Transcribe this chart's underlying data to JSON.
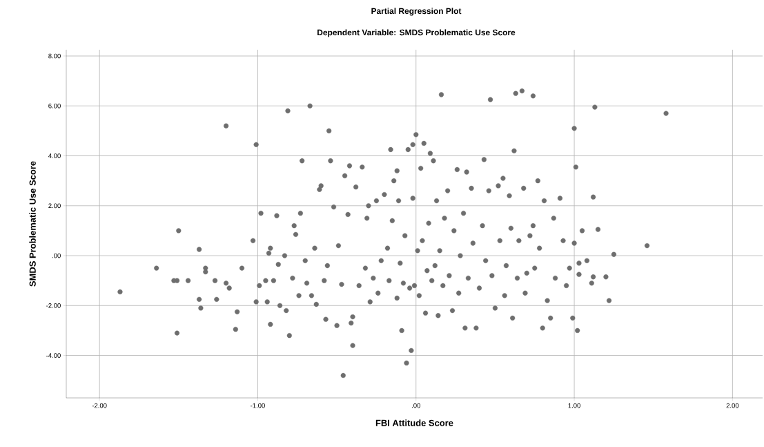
{
  "chart_data": {
    "type": "scatter",
    "title": "Partial Regression Plot",
    "subtitle": "Dependent Variable: SMDS Problematic Use Score",
    "xlabel": "FBI Attitude Score",
    "ylabel": "SMDS Problematic Use Score",
    "xlim": [
      -2.21,
      2.19
    ],
    "ylim": [
      -5.7,
      8.25
    ],
    "xticks": [
      {
        "value": -2,
        "label": "-2.00"
      },
      {
        "value": -1,
        "label": "-1.00"
      },
      {
        "value": 0,
        "label": ".00"
      },
      {
        "value": 1,
        "label": "1.00"
      },
      {
        "value": 2,
        "label": "2.00"
      }
    ],
    "yticks": [
      {
        "value": -4,
        "label": "-4.00"
      },
      {
        "value": -2,
        "label": "-2.00"
      },
      {
        "value": 0,
        "label": ".00"
      },
      {
        "value": 2,
        "label": "2.00"
      },
      {
        "value": 4,
        "label": "4.00"
      },
      {
        "value": 6,
        "label": "6.00"
      },
      {
        "value": 8,
        "label": "8.00"
      }
    ],
    "grid": true,
    "marker": "circle",
    "series": [
      {
        "color": "#6e6e6e",
        "x": [
          -1.87,
          -1.64,
          -1.53,
          -1.51,
          -1.5,
          -1.51,
          -1.44,
          -1.37,
          -1.37,
          -1.36,
          -1.33,
          -1.33,
          -1.27,
          -1.26,
          -1.2,
          -1.2,
          -1.18,
          -1.14,
          -1.13,
          -1.1,
          -1.03,
          -1.01,
          -1.01,
          -0.99,
          -0.98,
          -0.95,
          -0.94,
          -0.93,
          -0.92,
          -0.92,
          -0.9,
          -0.88,
          -0.87,
          -0.86,
          -0.83,
          -0.82,
          -0.81,
          -0.8,
          -0.78,
          -0.77,
          -0.76,
          -0.74,
          -0.73,
          -0.72,
          -0.7,
          -0.69,
          -0.67,
          -0.66,
          -0.64,
          -0.63,
          -0.61,
          -0.6,
          -0.58,
          -0.57,
          -0.56,
          -0.55,
          -0.54,
          -0.52,
          -0.5,
          -0.49,
          -0.47,
          -0.46,
          -0.45,
          -0.43,
          -0.42,
          -0.41,
          -0.4,
          -0.4,
          -0.38,
          -0.36,
          -0.34,
          -0.32,
          -0.31,
          -0.3,
          -0.29,
          -0.27,
          -0.25,
          -0.24,
          -0.22,
          -0.2,
          -0.18,
          -0.17,
          -0.16,
          -0.15,
          -0.14,
          -0.12,
          -0.12,
          -0.11,
          -0.1,
          -0.09,
          -0.08,
          -0.07,
          -0.06,
          -0.05,
          -0.04,
          -0.03,
          -0.02,
          -0.02,
          -0.01,
          0.0,
          0.01,
          0.02,
          0.03,
          0.04,
          0.05,
          0.06,
          0.07,
          0.08,
          0.09,
          0.1,
          0.11,
          0.12,
          0.13,
          0.14,
          0.15,
          0.16,
          0.17,
          0.18,
          0.2,
          0.21,
          0.23,
          0.24,
          0.26,
          0.27,
          0.28,
          0.3,
          0.31,
          0.32,
          0.33,
          0.35,
          0.36,
          0.38,
          0.4,
          0.42,
          0.43,
          0.44,
          0.46,
          0.47,
          0.48,
          0.5,
          0.52,
          0.53,
          0.55,
          0.56,
          0.57,
          0.59,
          0.6,
          0.61,
          0.62,
          0.63,
          0.64,
          0.65,
          0.67,
          0.68,
          0.69,
          0.7,
          0.72,
          0.74,
          0.74,
          0.75,
          0.77,
          0.78,
          0.8,
          0.81,
          0.83,
          0.85,
          0.87,
          0.88,
          0.91,
          0.93,
          0.95,
          0.97,
          0.99,
          1.0,
          1.01,
          1.02,
          1.0,
          1.03,
          1.05,
          1.08,
          1.11,
          1.12,
          1.13,
          1.15,
          1.2,
          1.22,
          1.25,
          1.46,
          1.58,
          1.12,
          1.03
        ],
        "values": [
          -1.45,
          -0.5,
          -1.0,
          -1.0,
          1.0,
          -3.1,
          -1.0,
          0.25,
          -1.75,
          -2.1,
          -0.5,
          -0.65,
          -1.0,
          -1.75,
          -1.1,
          5.2,
          -1.3,
          -2.95,
          -2.25,
          -0.5,
          0.6,
          4.45,
          -1.85,
          -1.2,
          1.7,
          -1.0,
          -1.85,
          0.1,
          0.3,
          -2.75,
          -1.0,
          1.6,
          -0.35,
          -2.0,
          0.0,
          -2.2,
          5.8,
          -3.2,
          -0.9,
          1.2,
          0.85,
          -1.6,
          1.7,
          3.8,
          -0.2,
          -1.1,
          6.0,
          -1.6,
          0.3,
          -1.95,
          2.65,
          2.8,
          -1.0,
          -2.55,
          -0.4,
          5.0,
          3.8,
          1.95,
          -2.8,
          0.4,
          -1.15,
          -4.8,
          3.2,
          1.65,
          3.6,
          -2.7,
          -2.45,
          -3.6,
          2.75,
          -1.2,
          3.55,
          -0.5,
          1.5,
          2.0,
          -1.85,
          -0.9,
          2.2,
          -1.5,
          -0.2,
          2.45,
          0.3,
          -1.0,
          4.25,
          1.4,
          3.0,
          -1.7,
          3.4,
          2.2,
          -0.3,
          -3.0,
          -1.1,
          0.8,
          -4.3,
          4.25,
          -1.3,
          -3.8,
          4.45,
          2.3,
          -1.2,
          4.85,
          0.2,
          -1.6,
          3.5,
          0.6,
          4.5,
          -2.3,
          -0.6,
          1.3,
          4.1,
          -1.0,
          3.8,
          -0.4,
          2.2,
          -2.4,
          0.2,
          6.45,
          -1.2,
          1.5,
          2.6,
          -0.8,
          -2.2,
          1.0,
          3.45,
          -1.5,
          0.0,
          1.7,
          -2.9,
          3.35,
          -0.9,
          2.7,
          0.5,
          -2.9,
          -1.3,
          1.2,
          3.85,
          -0.2,
          2.6,
          6.25,
          -0.8,
          -2.1,
          2.8,
          0.6,
          3.1,
          -1.6,
          -0.4,
          2.4,
          1.1,
          -2.5,
          4.2,
          6.5,
          -0.9,
          0.6,
          6.6,
          2.7,
          -1.5,
          -0.7,
          0.8,
          6.4,
          1.2,
          -0.5,
          3.0,
          0.3,
          -2.9,
          2.2,
          -1.8,
          -2.5,
          1.5,
          -0.9,
          2.3,
          0.6,
          -1.2,
          -0.5,
          -2.5,
          5.1,
          3.55,
          -3.0,
          0.5,
          -0.3,
          1.0,
          -0.2,
          -1.1,
          2.35,
          5.95,
          1.05,
          -0.85,
          -1.8,
          0.05,
          0.4,
          5.7,
          -0.85,
          -0.75
        ]
      }
    ]
  }
}
